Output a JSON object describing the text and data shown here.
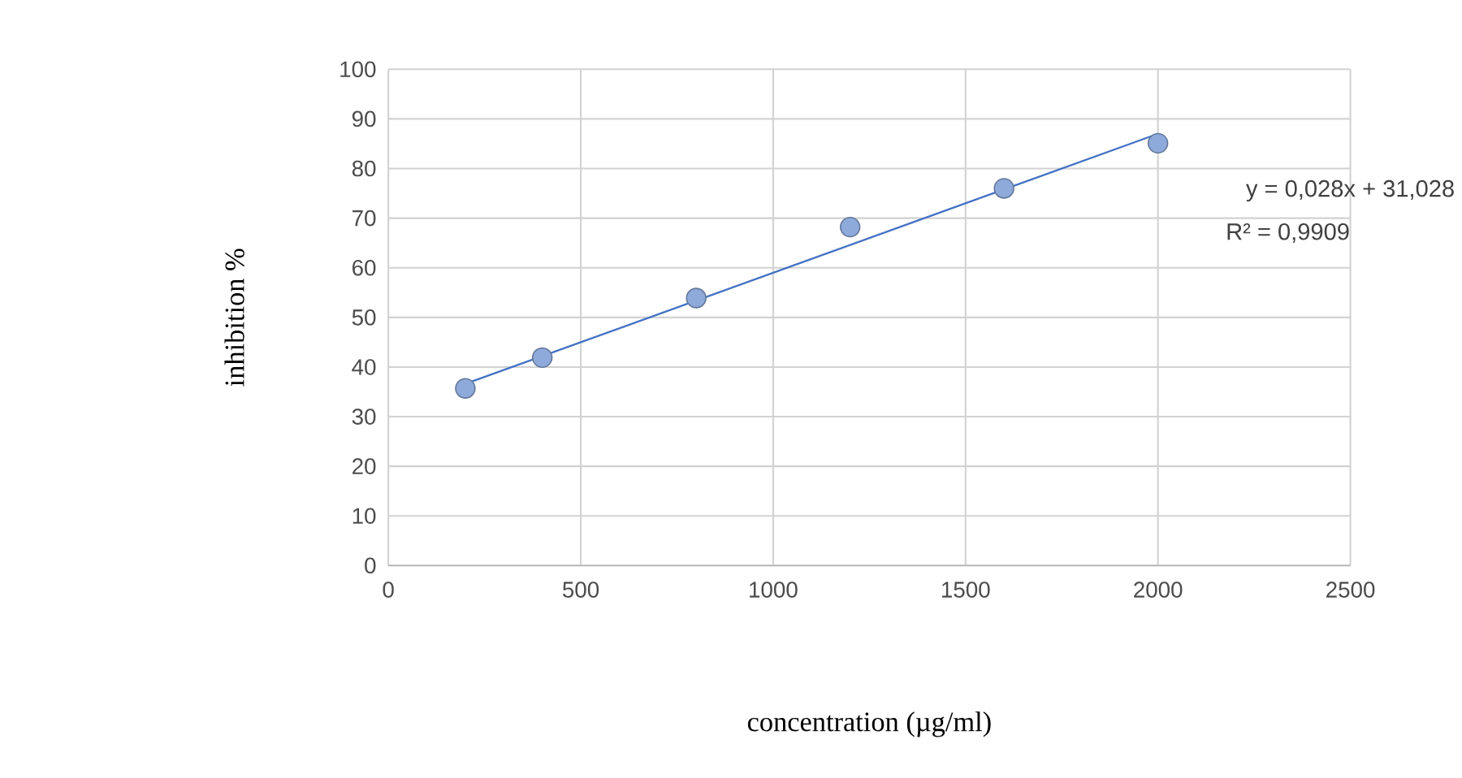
{
  "chart_data": {
    "type": "scatter",
    "xlabel": "concentration (µg/ml)",
    "ylabel": "inhibition %",
    "series": [
      {
        "type": "scatter",
        "marker": "circle",
        "color": "#8eaadb",
        "x": [
          200,
          400,
          800,
          1200,
          1600,
          2000
        ],
        "values": [
          35.7,
          41.9,
          53.9,
          68.2,
          76.0,
          85.1
        ]
      },
      {
        "type": "line",
        "color": "#4472c4",
        "x": [
          200,
          2000
        ],
        "values": [
          36.6,
          87.0
        ]
      }
    ],
    "annotations": [
      "y = 0,028x + 31,028",
      "R² = 0,9909"
    ],
    "xlim": [
      0,
      2500
    ],
    "xticks": [
      0,
      500,
      1000,
      1500,
      2000,
      2500
    ],
    "ylim": [
      0,
      100
    ],
    "yticks": [
      0,
      10,
      20,
      30,
      40,
      50,
      60,
      70,
      80,
      90,
      100
    ],
    "grid": true
  }
}
